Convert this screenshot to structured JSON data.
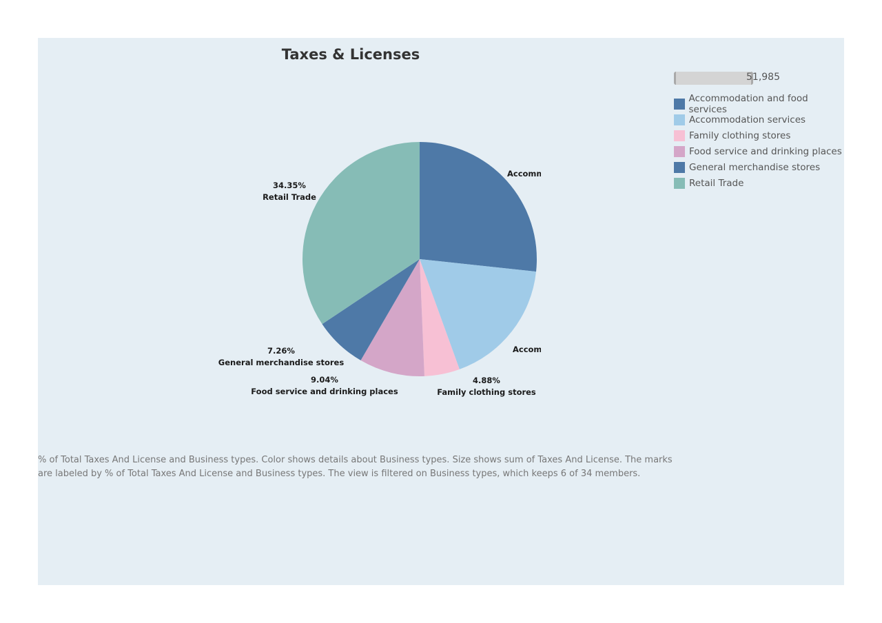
{
  "page": {
    "title": "Taxes & Licenses"
  },
  "size_legend": {
    "max_label": "51,985"
  },
  "legend": {
    "items": [
      {
        "label": "Accommodation and food services",
        "color": "#4e79a7"
      },
      {
        "label": "Accommodation services",
        "color": "#a0cbe8"
      },
      {
        "label": "Family clothing stores",
        "color": "#f7c0d4"
      },
      {
        "label": "Food service and drinking places",
        "color": "#d4a6c8"
      },
      {
        "label": "General merchandise stores",
        "color": "#4e79a7"
      },
      {
        "label": "Retail Trade",
        "color": "#86bcb6"
      }
    ]
  },
  "caption": {
    "line1": "% of Total Taxes And License and Business types.  Color shows details about Business types.  Size shows sum of Taxes And License.  The marks",
    "line2": "are labeled by % of Total Taxes And License and Business types. The view is filtered on Business types, which keeps 6 of 34 members."
  },
  "chart_data": {
    "type": "pie",
    "title": "Taxes & Licenses",
    "slices": [
      {
        "name": "Accommodation and food services",
        "value": 26.7,
        "color": "#4e79a7",
        "label_pct": "",
        "label_name": "Accomm"
      },
      {
        "name": "Accommodation services",
        "value": 17.77,
        "color": "#a0cbe8",
        "label_pct": "",
        "label_name": "Accomm"
      },
      {
        "name": "Family clothing stores",
        "value": 4.88,
        "color": "#f7c0d4",
        "label_pct": "4.88%",
        "label_name": "Family clothing stores"
      },
      {
        "name": "Food service and drinking places",
        "value": 9.04,
        "color": "#d4a6c8",
        "label_pct": "9.04%",
        "label_name": "Food service and drinking places"
      },
      {
        "name": "General merchandise stores",
        "value": 7.26,
        "color": "#4e79a7",
        "label_pct": "7.26%",
        "label_name": "General merchandise stores"
      },
      {
        "name": "Retail Trade",
        "value": 34.35,
        "color": "#86bcb6",
        "label_pct": "34.35%",
        "label_name": "Retail Trade"
      }
    ]
  }
}
